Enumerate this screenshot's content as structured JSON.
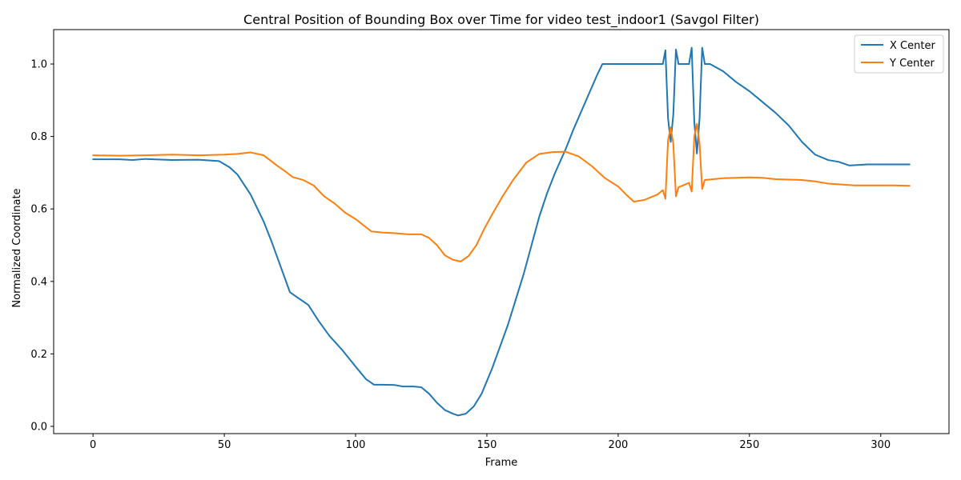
{
  "chart_data": {
    "type": "line",
    "title": "Central Position of Bounding Box over Time for video test_indoor1 (Savgol Filter)",
    "xlabel": "Frame",
    "ylabel": "Normalized Coordinate",
    "xlim": [
      -15,
      326
    ],
    "ylim": [
      -0.02,
      1.095
    ],
    "xticks": [
      0,
      50,
      100,
      150,
      200,
      250,
      300
    ],
    "yticks": [
      0.0,
      0.2,
      0.4,
      0.6,
      0.8,
      1.0
    ],
    "grid": false,
    "legend_position": "top-right",
    "series": [
      {
        "name": "X Center",
        "color": "#1f77b4",
        "points": [
          [
            0,
            0.737
          ],
          [
            10,
            0.737
          ],
          [
            15,
            0.735
          ],
          [
            20,
            0.738
          ],
          [
            30,
            0.735
          ],
          [
            40,
            0.736
          ],
          [
            48,
            0.732
          ],
          [
            52,
            0.715
          ],
          [
            55,
            0.695
          ],
          [
            60,
            0.64
          ],
          [
            65,
            0.565
          ],
          [
            68,
            0.51
          ],
          [
            72,
            0.43
          ],
          [
            75,
            0.37
          ],
          [
            78,
            0.355
          ],
          [
            82,
            0.335
          ],
          [
            86,
            0.29
          ],
          [
            90,
            0.25
          ],
          [
            95,
            0.21
          ],
          [
            100,
            0.165
          ],
          [
            104,
            0.13
          ],
          [
            107,
            0.115
          ],
          [
            110,
            0.115
          ],
          [
            115,
            0.114
          ],
          [
            118,
            0.11
          ],
          [
            122,
            0.11
          ],
          [
            125,
            0.108
          ],
          [
            128,
            0.09
          ],
          [
            131,
            0.065
          ],
          [
            134,
            0.045
          ],
          [
            137,
            0.035
          ],
          [
            139,
            0.03
          ],
          [
            142,
            0.035
          ],
          [
            145,
            0.055
          ],
          [
            148,
            0.09
          ],
          [
            152,
            0.16
          ],
          [
            155,
            0.22
          ],
          [
            158,
            0.28
          ],
          [
            161,
            0.35
          ],
          [
            164,
            0.42
          ],
          [
            167,
            0.5
          ],
          [
            170,
            0.58
          ],
          [
            173,
            0.645
          ],
          [
            176,
            0.7
          ],
          [
            180,
            0.765
          ],
          [
            183,
            0.82
          ],
          [
            186,
            0.87
          ],
          [
            189,
            0.92
          ],
          [
            192,
            0.97
          ],
          [
            194,
            1.0
          ],
          [
            200,
            1.0
          ],
          [
            210,
            1.0
          ],
          [
            217,
            1.0
          ],
          [
            218,
            1.038
          ],
          [
            219,
            0.85
          ],
          [
            220,
            0.785
          ],
          [
            221,
            0.86
          ],
          [
            222,
            1.04
          ],
          [
            223,
            1.0
          ],
          [
            227,
            1.0
          ],
          [
            228,
            1.045
          ],
          [
            229,
            0.84
          ],
          [
            230,
            0.753
          ],
          [
            231,
            0.85
          ],
          [
            232,
            1.045
          ],
          [
            233,
            1.0
          ],
          [
            235,
            1.0
          ],
          [
            240,
            0.98
          ],
          [
            245,
            0.95
          ],
          [
            250,
            0.925
          ],
          [
            255,
            0.895
          ],
          [
            260,
            0.865
          ],
          [
            265,
            0.83
          ],
          [
            270,
            0.785
          ],
          [
            275,
            0.75
          ],
          [
            280,
            0.735
          ],
          [
            284,
            0.73
          ],
          [
            288,
            0.72
          ],
          [
            295,
            0.723
          ],
          [
            300,
            0.723
          ],
          [
            305,
            0.723
          ],
          [
            311,
            0.723
          ]
        ]
      },
      {
        "name": "Y Center",
        "color": "#ff7f0e",
        "points": [
          [
            0,
            0.748
          ],
          [
            10,
            0.747
          ],
          [
            20,
            0.748
          ],
          [
            30,
            0.75
          ],
          [
            40,
            0.748
          ],
          [
            50,
            0.75
          ],
          [
            55,
            0.752
          ],
          [
            60,
            0.756
          ],
          [
            65,
            0.748
          ],
          [
            70,
            0.72
          ],
          [
            73,
            0.705
          ],
          [
            76,
            0.688
          ],
          [
            80,
            0.68
          ],
          [
            84,
            0.665
          ],
          [
            88,
            0.635
          ],
          [
            92,
            0.615
          ],
          [
            96,
            0.59
          ],
          [
            100,
            0.572
          ],
          [
            103,
            0.555
          ],
          [
            106,
            0.538
          ],
          [
            110,
            0.535
          ],
          [
            115,
            0.533
          ],
          [
            120,
            0.53
          ],
          [
            125,
            0.53
          ],
          [
            128,
            0.52
          ],
          [
            131,
            0.5
          ],
          [
            134,
            0.472
          ],
          [
            137,
            0.46
          ],
          [
            140,
            0.455
          ],
          [
            143,
            0.47
          ],
          [
            146,
            0.5
          ],
          [
            149,
            0.545
          ],
          [
            152,
            0.585
          ],
          [
            156,
            0.635
          ],
          [
            160,
            0.68
          ],
          [
            165,
            0.728
          ],
          [
            170,
            0.752
          ],
          [
            175,
            0.757
          ],
          [
            180,
            0.758
          ],
          [
            185,
            0.745
          ],
          [
            190,
            0.718
          ],
          [
            195,
            0.685
          ],
          [
            200,
            0.662
          ],
          [
            203,
            0.64
          ],
          [
            206,
            0.62
          ],
          [
            210,
            0.625
          ],
          [
            215,
            0.64
          ],
          [
            217,
            0.652
          ],
          [
            218,
            0.628
          ],
          [
            219,
            0.79
          ],
          [
            220,
            0.825
          ],
          [
            221,
            0.78
          ],
          [
            222,
            0.635
          ],
          [
            223,
            0.66
          ],
          [
            227,
            0.672
          ],
          [
            228,
            0.648
          ],
          [
            229,
            0.8
          ],
          [
            230,
            0.835
          ],
          [
            231,
            0.78
          ],
          [
            232,
            0.655
          ],
          [
            233,
            0.68
          ],
          [
            240,
            0.685
          ],
          [
            250,
            0.687
          ],
          [
            255,
            0.686
          ],
          [
            260,
            0.682
          ],
          [
            270,
            0.68
          ],
          [
            275,
            0.676
          ],
          [
            280,
            0.67
          ],
          [
            290,
            0.665
          ],
          [
            300,
            0.665
          ],
          [
            305,
            0.665
          ],
          [
            311,
            0.664
          ]
        ]
      }
    ]
  }
}
